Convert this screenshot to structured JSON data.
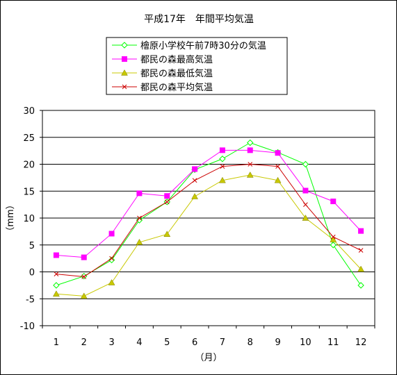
{
  "chart_data": {
    "type": "line",
    "title": "平成17年　年間平均気温",
    "xlabel": "（月）",
    "ylabel": "（mm）",
    "categories": [
      "1",
      "2",
      "3",
      "4",
      "5",
      "6",
      "7",
      "8",
      "9",
      "10",
      "11",
      "12"
    ],
    "ylim": [
      -10,
      30
    ],
    "yticks": [
      -10,
      -5,
      0,
      5,
      10,
      15,
      20,
      25,
      30
    ],
    "grid": true,
    "legend": "top",
    "series": [
      {
        "name": "檜原小学校午前7時30分の気温",
        "color": "#00ff00",
        "marker": "diamond",
        "values": [
          -2.5,
          -0.8,
          2.2,
          9.6,
          13.0,
          19.0,
          21.0,
          24.0,
          22.2,
          20.0,
          5.0,
          -2.5
        ]
      },
      {
        "name": "都民の森最高気温",
        "color": "#ff00ff",
        "marker": "square",
        "values": [
          3.1,
          2.7,
          7.1,
          14.6,
          14.1,
          19.1,
          22.6,
          22.6,
          22.1,
          15.1,
          13.1,
          7.6
        ]
      },
      {
        "name": "都民の森最低気温",
        "color": "#c8c800",
        "marker": "triangle",
        "values": [
          -4.1,
          -4.5,
          -2.0,
          5.5,
          7.0,
          14.0,
          17.0,
          18.0,
          17.0,
          10.0,
          6.0,
          0.5
        ]
      },
      {
        "name": "都民の森平均気温",
        "color": "#cc0000",
        "marker": "x",
        "values": [
          -0.4,
          -0.9,
          2.5,
          10.0,
          13.0,
          17.0,
          19.6,
          20.0,
          19.6,
          12.5,
          6.5,
          4.0
        ]
      }
    ]
  }
}
